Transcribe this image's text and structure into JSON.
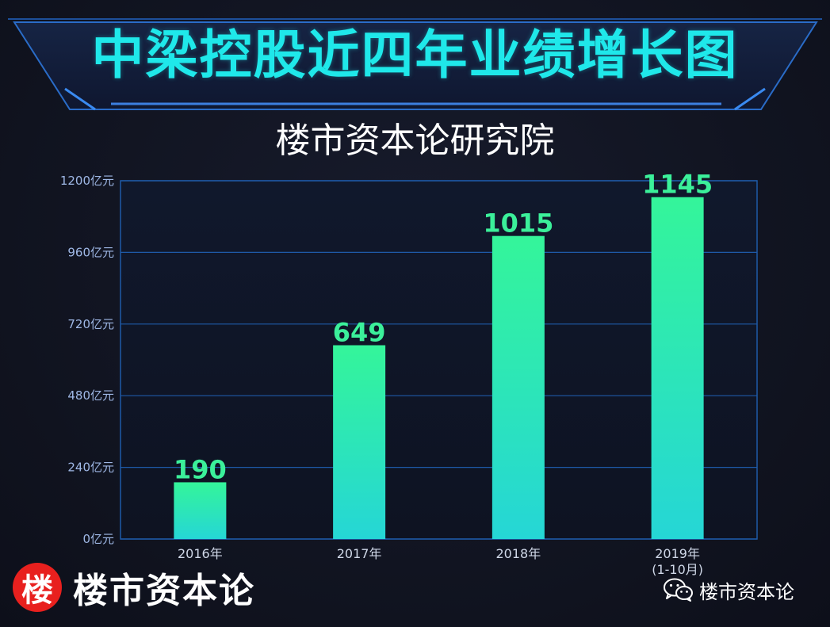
{
  "title": "中梁控股近四年业绩增长图",
  "subtitle": "楼市资本论研究院",
  "brand": {
    "badge_char": "楼",
    "name": "楼市资本论"
  },
  "wechat": {
    "icon": "wechat-icon",
    "label": "楼市资本论"
  },
  "colors": {
    "title": "#1fe8ea",
    "bar_top": "#34f59a",
    "bar_bottom": "#25d6d6",
    "data_label": "#3bf09a",
    "grid": "#1e5aa8",
    "badge": "#e8201e"
  },
  "chart_data": {
    "type": "bar",
    "title": "中梁控股近四年业绩增长图",
    "categories": [
      "2016年",
      "2017年",
      "2018年",
      "2019年\n(1-10月)"
    ],
    "values": [
      190,
      649,
      1015,
      1145
    ],
    "data_labels": [
      "190",
      "649",
      "1015",
      "1145"
    ],
    "y_ticks": [
      0,
      240,
      480,
      720,
      960,
      1200
    ],
    "y_tick_labels": [
      "0亿元",
      "240亿元",
      "480亿元",
      "720亿元",
      "960亿元",
      "1200亿元"
    ],
    "ylim": [
      0,
      1200
    ],
    "xlabel": "",
    "ylabel": "",
    "grid": true
  }
}
